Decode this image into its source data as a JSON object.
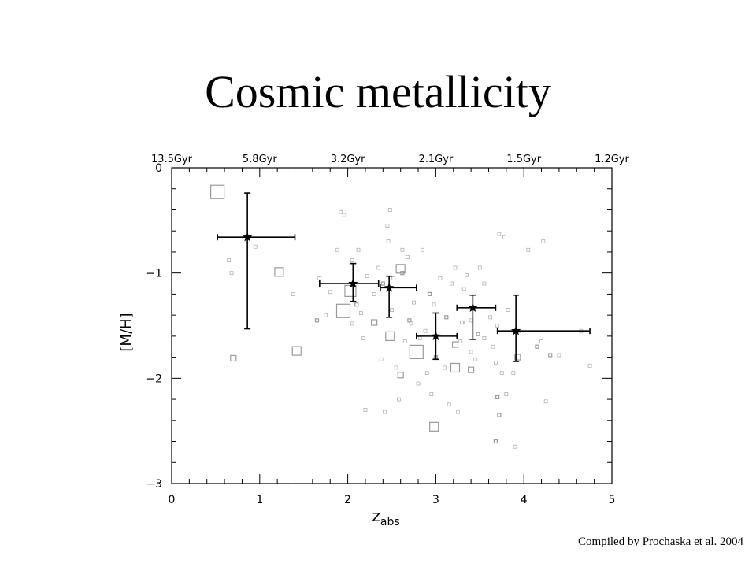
{
  "slide": {
    "title": "Cosmic metallicity",
    "credit": "Compiled by Prochaska et al. 2004"
  },
  "chart_data": {
    "type": "scatter",
    "xlabel": "z",
    "xlabel_subscript": "abs",
    "ylabel": "[M/H]",
    "xlim": [
      0,
      5
    ],
    "ylim": [
      -3,
      0
    ],
    "x_ticks": [
      "0",
      "1",
      "2",
      "3",
      "4",
      "5"
    ],
    "y_ticks": [
      "0",
      "−1",
      "−2",
      "−3"
    ],
    "top_axis_labels": [
      "13.5Gyr",
      "5.8Gyr",
      "3.2Gyr",
      "2.1Gyr",
      "1.5Gyr",
      "1.2Gyr"
    ],
    "top_axis_positions_z": [
      0.0,
      1.0,
      2.0,
      3.0,
      4.0,
      5.0
    ],
    "grid": false,
    "colors": {
      "points": "#9a9a9a",
      "binned": "#000000"
    },
    "series": [
      {
        "marker": "open-square",
        "points": [
          {
            "x": 0.52,
            "y": -0.23,
            "s": "xl"
          },
          {
            "x": 1.22,
            "y": -0.99,
            "s": "m"
          },
          {
            "x": 1.42,
            "y": -1.74,
            "s": "m"
          },
          {
            "x": 0.7,
            "y": -1.81,
            "s": "s"
          },
          {
            "x": 1.95,
            "y": -1.36,
            "s": "xl"
          },
          {
            "x": 2.03,
            "y": -1.17,
            "s": "l"
          },
          {
            "x": 2.3,
            "y": -1.47,
            "s": "s"
          },
          {
            "x": 2.48,
            "y": -1.6,
            "s": "m"
          },
          {
            "x": 2.6,
            "y": -0.96,
            "s": "m"
          },
          {
            "x": 2.6,
            "y": -1.97,
            "s": "s"
          },
          {
            "x": 2.78,
            "y": -1.75,
            "s": "xl"
          },
          {
            "x": 2.98,
            "y": -2.46,
            "s": "m"
          },
          {
            "x": 3.22,
            "y": -1.68,
            "s": "s"
          },
          {
            "x": 3.22,
            "y": -1.9,
            "s": "m"
          },
          {
            "x": 3.4,
            "y": -1.92,
            "s": "s"
          },
          {
            "x": 3.93,
            "y": -1.8,
            "s": "s"
          },
          {
            "x": 1.65,
            "y": -1.45,
            "s": "xs"
          },
          {
            "x": 2.1,
            "y": -1.3,
            "s": "xs"
          },
          {
            "x": 2.4,
            "y": -1.1,
            "s": "xs"
          },
          {
            "x": 2.7,
            "y": -1.45,
            "s": "xs"
          },
          {
            "x": 3.12,
            "y": -1.42,
            "s": "xs"
          },
          {
            "x": 3.3,
            "y": -1.47,
            "s": "xs"
          },
          {
            "x": 3.48,
            "y": -1.58,
            "s": "xs"
          },
          {
            "x": 4.3,
            "y": -1.78,
            "s": "xs"
          },
          {
            "x": 4.15,
            "y": -1.7,
            "s": "xs"
          },
          {
            "x": 3.7,
            "y": -2.18,
            "s": "xs"
          },
          {
            "x": 3.72,
            "y": -2.35,
            "s": "xs"
          },
          {
            "x": 3.68,
            "y": -2.6,
            "s": "xs"
          },
          {
            "x": 2.93,
            "y": -1.2,
            "s": "xs"
          },
          {
            "x": 3.0,
            "y": -1.8,
            "s": "xs"
          },
          {
            "x": 2.62,
            "y": -1.0,
            "s": "xs"
          }
        ]
      },
      {
        "marker": "small-open-square",
        "points": [
          {
            "x": 0.65,
            "y": -0.88
          },
          {
            "x": 0.68,
            "y": -1.0
          },
          {
            "x": 0.95,
            "y": -0.75
          },
          {
            "x": 1.38,
            "y": -1.2
          },
          {
            "x": 1.68,
            "y": -1.05
          },
          {
            "x": 1.75,
            "y": -1.4
          },
          {
            "x": 1.88,
            "y": -0.78
          },
          {
            "x": 1.92,
            "y": -0.42
          },
          {
            "x": 1.96,
            "y": -0.45
          },
          {
            "x": 2.05,
            "y": -0.88
          },
          {
            "x": 2.05,
            "y": -1.48
          },
          {
            "x": 2.12,
            "y": -0.78
          },
          {
            "x": 2.18,
            "y": -1.62
          },
          {
            "x": 2.2,
            "y": -2.3
          },
          {
            "x": 2.22,
            "y": -1.03
          },
          {
            "x": 2.3,
            "y": -1.2
          },
          {
            "x": 2.35,
            "y": -0.95
          },
          {
            "x": 2.38,
            "y": -1.82
          },
          {
            "x": 2.42,
            "y": -2.32
          },
          {
            "x": 2.45,
            "y": -0.55
          },
          {
            "x": 2.46,
            "y": -0.7
          },
          {
            "x": 2.48,
            "y": -0.4
          },
          {
            "x": 2.5,
            "y": -1.35
          },
          {
            "x": 2.52,
            "y": -1.05
          },
          {
            "x": 2.55,
            "y": -1.9
          },
          {
            "x": 2.58,
            "y": -2.2
          },
          {
            "x": 2.62,
            "y": -0.78
          },
          {
            "x": 2.65,
            "y": -1.65
          },
          {
            "x": 2.68,
            "y": -0.85
          },
          {
            "x": 2.72,
            "y": -1.48
          },
          {
            "x": 2.75,
            "y": -1.28
          },
          {
            "x": 2.8,
            "y": -2.05
          },
          {
            "x": 2.82,
            "y": -1.62
          },
          {
            "x": 2.85,
            "y": -0.78
          },
          {
            "x": 2.88,
            "y": -1.55
          },
          {
            "x": 2.9,
            "y": -1.95
          },
          {
            "x": 2.95,
            "y": -2.15
          },
          {
            "x": 3.05,
            "y": -1.05
          },
          {
            "x": 3.1,
            "y": -1.9
          },
          {
            "x": 3.15,
            "y": -2.25
          },
          {
            "x": 3.18,
            "y": -1.1
          },
          {
            "x": 3.22,
            "y": -0.95
          },
          {
            "x": 3.25,
            "y": -2.32
          },
          {
            "x": 3.28,
            "y": -1.65
          },
          {
            "x": 3.32,
            "y": -1.15
          },
          {
            "x": 3.35,
            "y": -1.02
          },
          {
            "x": 3.4,
            "y": -1.45
          },
          {
            "x": 3.45,
            "y": -1.82
          },
          {
            "x": 3.5,
            "y": -0.95
          },
          {
            "x": 3.55,
            "y": -1.62
          },
          {
            "x": 3.62,
            "y": -1.42
          },
          {
            "x": 3.65,
            "y": -1.7
          },
          {
            "x": 3.68,
            "y": -1.85
          },
          {
            "x": 3.7,
            "y": -1.5
          },
          {
            "x": 3.72,
            "y": -0.63
          },
          {
            "x": 3.75,
            "y": -1.95
          },
          {
            "x": 3.78,
            "y": -0.66
          },
          {
            "x": 3.8,
            "y": -2.15
          },
          {
            "x": 3.82,
            "y": -1.35
          },
          {
            "x": 3.88,
            "y": -1.95
          },
          {
            "x": 3.9,
            "y": -2.65
          },
          {
            "x": 3.95,
            "y": -1.55
          },
          {
            "x": 4.05,
            "y": -0.78
          },
          {
            "x": 4.2,
            "y": -1.65
          },
          {
            "x": 4.22,
            "y": -0.7
          },
          {
            "x": 4.25,
            "y": -2.22
          },
          {
            "x": 4.4,
            "y": -1.78
          },
          {
            "x": 4.65,
            "y": -1.55
          },
          {
            "x": 4.75,
            "y": -1.88
          },
          {
            "x": 3.4,
            "y": -1.75
          },
          {
            "x": 2.98,
            "y": -1.3
          },
          {
            "x": 3.55,
            "y": -1.1
          },
          {
            "x": 2.15,
            "y": -1.38
          },
          {
            "x": 1.8,
            "y": -1.18
          }
        ]
      },
      {
        "marker": "star-errorbar",
        "points": [
          {
            "x": 0.86,
            "y": -0.66,
            "xlo": 0.52,
            "xhi": 1.4,
            "ylo": -1.53,
            "yhi": -0.24
          },
          {
            "x": 2.06,
            "y": -1.1,
            "xlo": 1.68,
            "xhi": 2.35,
            "ylo": -1.27,
            "yhi": -0.91
          },
          {
            "x": 2.47,
            "y": -1.14,
            "xlo": 2.37,
            "xhi": 2.78,
            "ylo": -1.42,
            "yhi": -1.03
          },
          {
            "x": 3.0,
            "y": -1.6,
            "xlo": 2.78,
            "xhi": 3.24,
            "ylo": -1.82,
            "yhi": -1.38
          },
          {
            "x": 3.42,
            "y": -1.33,
            "xlo": 3.24,
            "xhi": 3.68,
            "ylo": -1.63,
            "yhi": -1.21
          },
          {
            "x": 3.91,
            "y": -1.55,
            "xlo": 3.7,
            "xhi": 4.75,
            "ylo": -1.84,
            "yhi": -1.21
          }
        ]
      }
    ]
  }
}
